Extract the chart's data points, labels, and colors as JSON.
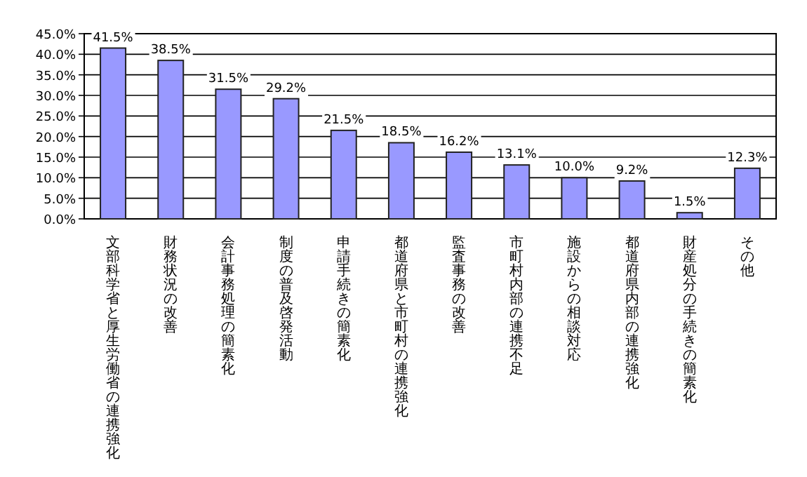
{
  "chart_data": {
    "type": "bar",
    "categories": [
      "文部科学省と厚生労働省の連携強化",
      "財務状況の改善",
      "会計事務処理の簡素化",
      "制度の普及啓発活動",
      "申請手続きの簡素化",
      "都道府県と市町村の連携強化",
      "監査事務の改善",
      "市町村内部の連携不足",
      "施設からの相談対応",
      "都道府県内部の連携強化",
      "財産処分の手続きの簡素化",
      "その他"
    ],
    "values": [
      41.5,
      38.5,
      31.5,
      29.2,
      21.5,
      18.5,
      16.2,
      13.1,
      10.0,
      9.2,
      1.5,
      12.3
    ],
    "value_labels": [
      "41.5%",
      "38.5%",
      "31.5%",
      "29.2%",
      "21.5%",
      "18.5%",
      "16.2%",
      "13.1%",
      "10.0%",
      "9.2%",
      "1.5%",
      "12.3%"
    ],
    "color": "#9999ff",
    "ylim": [
      0,
      45
    ],
    "yticks": [
      {
        "value": 0,
        "label": "0.0%"
      },
      {
        "value": 5,
        "label": "5.0%"
      },
      {
        "value": 10,
        "label": "10.0%"
      },
      {
        "value": 15,
        "label": "15.0%"
      },
      {
        "value": 20,
        "label": "20.0%"
      },
      {
        "value": 25,
        "label": "25.0%"
      },
      {
        "value": 30,
        "label": "30.0%"
      },
      {
        "value": 35,
        "label": "35.0%"
      },
      {
        "value": 40,
        "label": "40.0%"
      },
      {
        "value": 45,
        "label": "45.0%"
      }
    ],
    "grid": "y"
  }
}
